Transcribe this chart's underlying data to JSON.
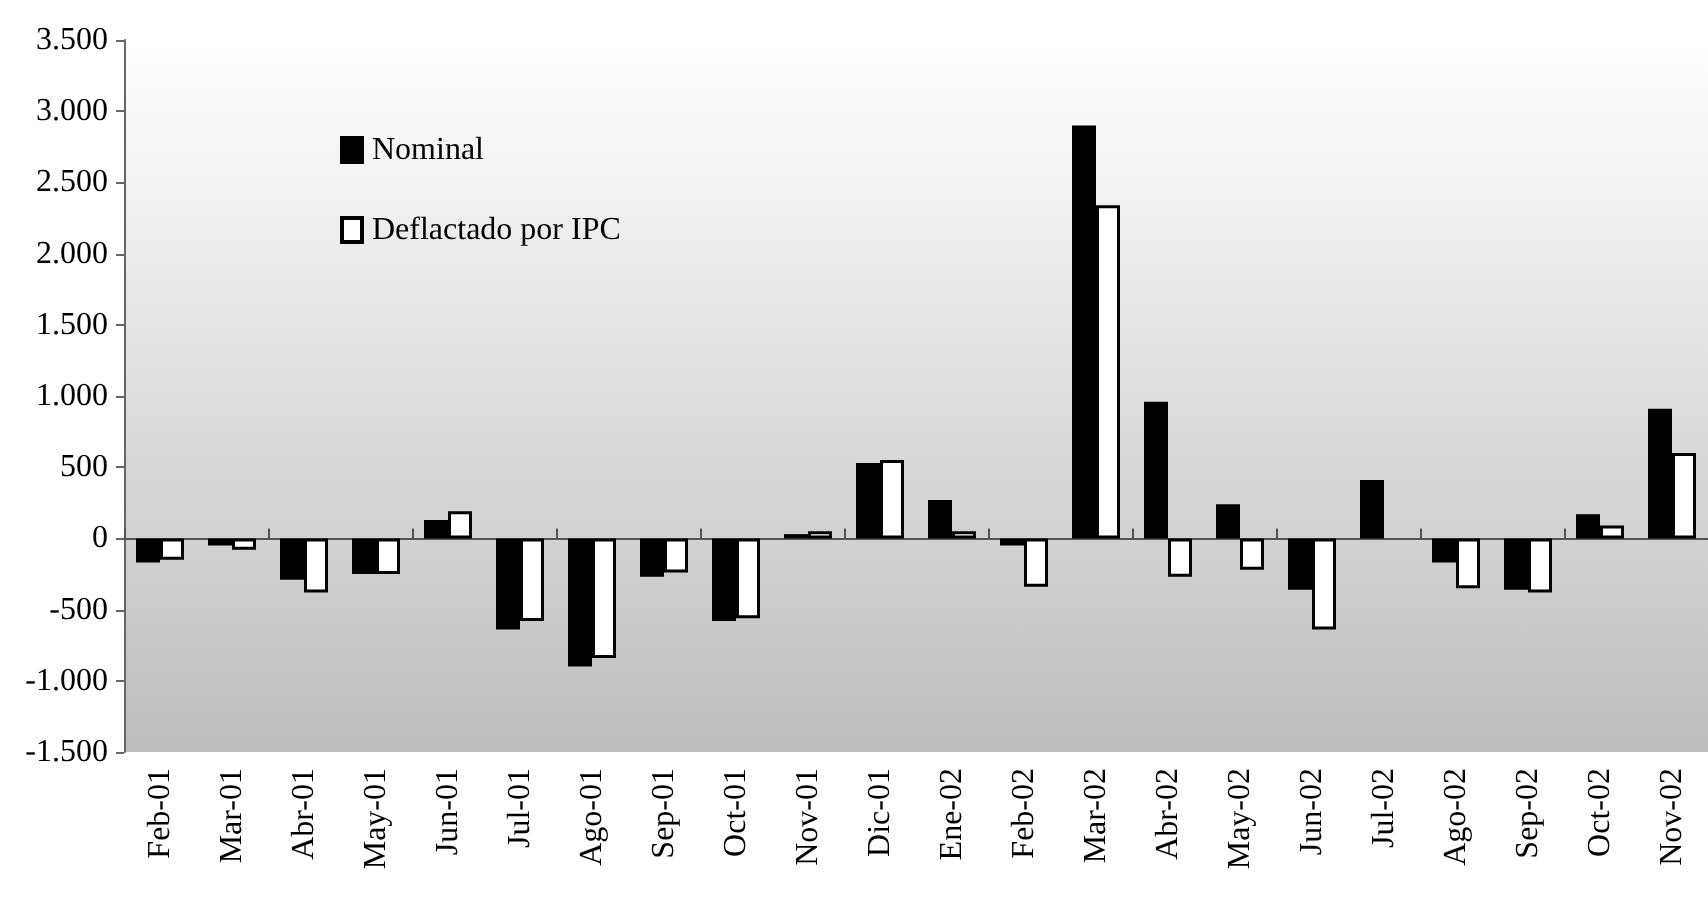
{
  "chart_data": {
    "type": "bar",
    "categories": [
      "Feb-01",
      "Mar-01",
      "Abr-01",
      "May-01",
      "Jun-01",
      "Jul-01",
      "Ago-01",
      "Sep-01",
      "Oct-01",
      "Nov-01",
      "Dic-01",
      "Ene-02",
      "Feb-02",
      "Mar-02",
      "Abr-02",
      "May-02",
      "Jun-02",
      "Jul-02",
      "Ago-02",
      "Sep-02",
      "Oct-02",
      "Nov-02"
    ],
    "series": [
      {
        "name": "Nominal",
        "color": "#000000",
        "values": [
          -170,
          -50,
          -290,
          -250,
          130,
          -640,
          -900,
          -270,
          -580,
          30,
          530,
          270,
          -50,
          2900,
          960,
          240,
          -360,
          410,
          -170,
          -360,
          170,
          910
        ]
      },
      {
        "name": "Deflactado por IPC",
        "color": "#ffffff",
        "values": [
          -150,
          -80,
          -380,
          -250,
          190,
          -580,
          -840,
          -240,
          -560,
          50,
          550,
          50,
          -340,
          2340,
          -270,
          -220,
          -640,
          null,
          -350,
          -380,
          90,
          600
        ]
      }
    ],
    "ylim": [
      -1500,
      3500
    ],
    "yticks": [
      {
        "value": -1500,
        "label": "-1.500"
      },
      {
        "value": -1000,
        "label": "-1.000"
      },
      {
        "value": -500,
        "label": "-500"
      },
      {
        "value": 0,
        "label": "0"
      },
      {
        "value": 500,
        "label": "500"
      },
      {
        "value": 1000,
        "label": "1.000"
      },
      {
        "value": 1500,
        "label": "1.500"
      },
      {
        "value": 2000,
        "label": "2.000"
      },
      {
        "value": 2500,
        "label": "2.500"
      },
      {
        "value": 3000,
        "label": "3.000"
      },
      {
        "value": 3500,
        "label": "3.500"
      }
    ],
    "legend": "top left"
  }
}
